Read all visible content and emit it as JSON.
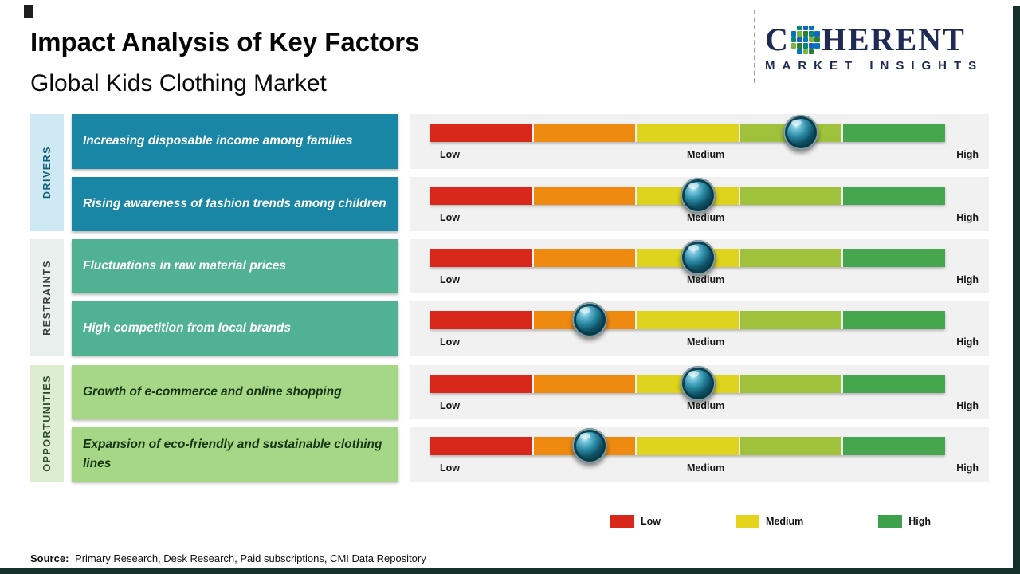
{
  "page": {
    "title": "Impact Analysis of Key Factors",
    "subtitle": "Global Kids Clothing Market",
    "source": {
      "label": "Source:",
      "text": "Primary Research, Desk Research, Paid subscriptions, CMI Data Repository"
    }
  },
  "logo": {
    "name_part1": "C",
    "name_part2": "HERENT",
    "tagline": "MARKET INSIGHTS",
    "brand_color": "#1f2a56",
    "mosaic_colors": [
      "#2e7d32",
      "#0277bd",
      "#00897b",
      "#7cb342",
      "#1565c0"
    ]
  },
  "scale_labels": {
    "low": "Low",
    "medium": "Medium",
    "high": "High"
  },
  "legend": {
    "items": [
      {
        "label": "Low",
        "color": "#d8281b"
      },
      {
        "label": "Medium",
        "color": "#e6d41c"
      },
      {
        "label": "High",
        "color": "#3da04b"
      }
    ]
  },
  "categories": [
    {
      "name": "DRIVERS"
    },
    {
      "name": "RESTRAINTS"
    },
    {
      "name": "OPPORTUNITIES"
    }
  ],
  "chart_data": {
    "type": "bar",
    "title": "Impact Analysis of Key Factors",
    "subtitle": "Global Kids Clothing Market",
    "scale": [
      "Low",
      "Medium",
      "High"
    ],
    "segment_colors": [
      "#d8281b",
      "#ee8a10",
      "#ded31d",
      "#9fc13c",
      "#46a64e"
    ],
    "rows": [
      {
        "category": "DRIVERS",
        "factor": "Increasing disposable income among families",
        "impact_position": 0.72,
        "impact_level": "Medium-High"
      },
      {
        "category": "DRIVERS",
        "factor": "Rising awareness of fashion trends among children",
        "impact_position": 0.52,
        "impact_level": "Medium"
      },
      {
        "category": "RESTRAINTS",
        "factor": "Fluctuations in raw material prices",
        "impact_position": 0.52,
        "impact_level": "Medium"
      },
      {
        "category": "RESTRAINTS",
        "factor": "High competition from local brands",
        "impact_position": 0.31,
        "impact_level": "Low-Medium"
      },
      {
        "category": "OPPORTUNITIES",
        "factor": "Growth of e-commerce and online shopping",
        "impact_position": 0.52,
        "impact_level": "Medium"
      },
      {
        "category": "OPPORTUNITIES",
        "factor": "Expansion of eco-friendly and sustainable clothing lines",
        "impact_position": 0.31,
        "impact_level": "Low-Medium"
      }
    ]
  }
}
